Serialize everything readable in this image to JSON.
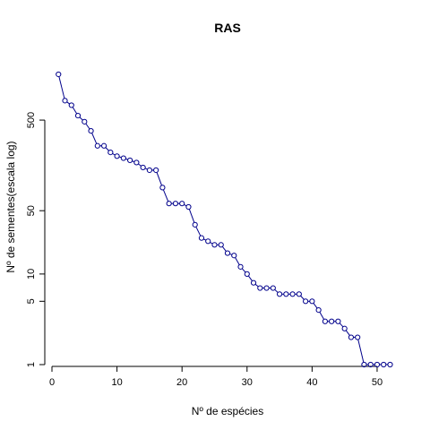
{
  "chart_data": {
    "type": "line",
    "title": "RAS",
    "xlabel": "Nº de espécies",
    "ylabel": "Nº de sementes(escala log)",
    "xlim": [
      0,
      54
    ],
    "ylim": [
      1,
      2700
    ],
    "y_scale": "log",
    "grid": false,
    "x_ticks": [
      0,
      10,
      20,
      30,
      40,
      50
    ],
    "y_ticks": [
      1,
      5,
      10,
      50,
      500
    ],
    "series": [
      {
        "color": "#00008B",
        "marker": "open-circle",
        "x": [
          1,
          2,
          3,
          4,
          5,
          6,
          7,
          8,
          9,
          10,
          11,
          12,
          13,
          14,
          15,
          16,
          17,
          18,
          19,
          20,
          21,
          22,
          23,
          24,
          25,
          26,
          27,
          28,
          29,
          30,
          31,
          32,
          33,
          34,
          35,
          36,
          37,
          38,
          39,
          40,
          41,
          42,
          43,
          44,
          45,
          46,
          47,
          48,
          49,
          50,
          51,
          52
        ],
        "y": [
          1600,
          820,
          730,
          560,
          480,
          380,
          260,
          260,
          220,
          200,
          190,
          180,
          170,
          150,
          140,
          140,
          90,
          60,
          60,
          60,
          55,
          35,
          25,
          23,
          21,
          21,
          17,
          16,
          12,
          10,
          8,
          7,
          7,
          7,
          6,
          6,
          6,
          6,
          5,
          5,
          4,
          3,
          3,
          3,
          2.5,
          2,
          2,
          1,
          1,
          1,
          1,
          1
        ]
      }
    ]
  }
}
